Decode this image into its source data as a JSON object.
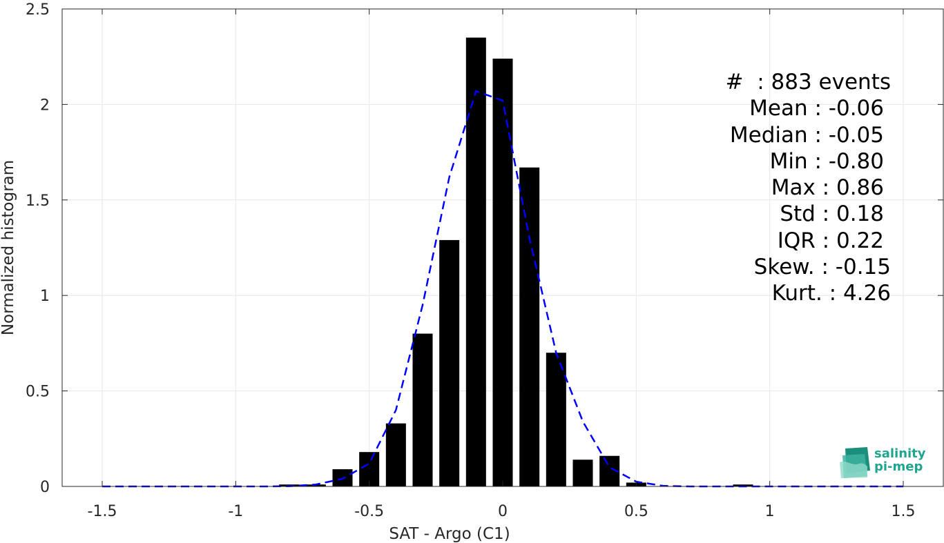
{
  "chart_data": {
    "type": "bar",
    "title": "",
    "xlabel": "SAT - Argo (C1)",
    "ylabel": "Normalized histogram",
    "xlim": [
      -1.65,
      1.65
    ],
    "ylim": [
      0,
      2.5
    ],
    "grid": true,
    "bar_width": 0.075,
    "xticks": [
      -1.5,
      -1,
      -0.5,
      0,
      0.5,
      1,
      1.5
    ],
    "xtick_labels": [
      "-1.5",
      "-1",
      "-0.5",
      "0",
      "0.5",
      "1",
      "1.5"
    ],
    "yticks": [
      0,
      0.5,
      1,
      1.5,
      2,
      2.5
    ],
    "ytick_labels": [
      "0",
      "0.5",
      "1",
      "1.5",
      "2",
      "2.5"
    ],
    "bars": {
      "centers": [
        -0.8,
        -0.7,
        -0.6,
        -0.5,
        -0.4,
        -0.3,
        -0.2,
        -0.1,
        0.0,
        0.1,
        0.2,
        0.3,
        0.4,
        0.5,
        0.9
      ],
      "values": [
        0.01,
        0.01,
        0.09,
        0.18,
        0.33,
        0.8,
        1.29,
        2.35,
        2.24,
        1.67,
        0.7,
        0.14,
        0.16,
        0.02,
        0.01
      ],
      "color": "#000000"
    },
    "series": [
      {
        "style": "dashed",
        "color": "#0000ff",
        "x": [
          -1.5,
          -1.4,
          -1.3,
          -1.2,
          -1.1,
          -1.0,
          -0.9,
          -0.8,
          -0.7,
          -0.6,
          -0.5,
          -0.4,
          -0.3,
          -0.2,
          -0.1,
          0.0,
          0.1,
          0.2,
          0.3,
          0.4,
          0.5,
          0.6,
          0.7,
          0.8,
          0.9,
          1.0,
          1.1,
          1.2,
          1.3,
          1.4,
          1.5
        ],
        "y": [
          0,
          0,
          0,
          0,
          0,
          0,
          0,
          0.001,
          0.01,
          0.04,
          0.12,
          0.4,
          0.95,
          1.62,
          2.07,
          2.02,
          1.3,
          0.7,
          0.34,
          0.1,
          0.025,
          0.003,
          0,
          0,
          0,
          0,
          0,
          0,
          0,
          0,
          0
        ]
      }
    ]
  },
  "stats": {
    "count": "#  : 883 events",
    "mean": "Mean : -0.06",
    "median": "Median : -0.05",
    "min": "Min : -0.80",
    "max": "Max : 0.86",
    "std": "Std : 0.18",
    "iqr": "IQR : 0.22",
    "skew": "Skew. : -0.15",
    "kurt": "Kurt. : 4.26"
  },
  "logo": {
    "line1": "salinity",
    "line2": "pi-mep",
    "color": "#1fa58f"
  }
}
